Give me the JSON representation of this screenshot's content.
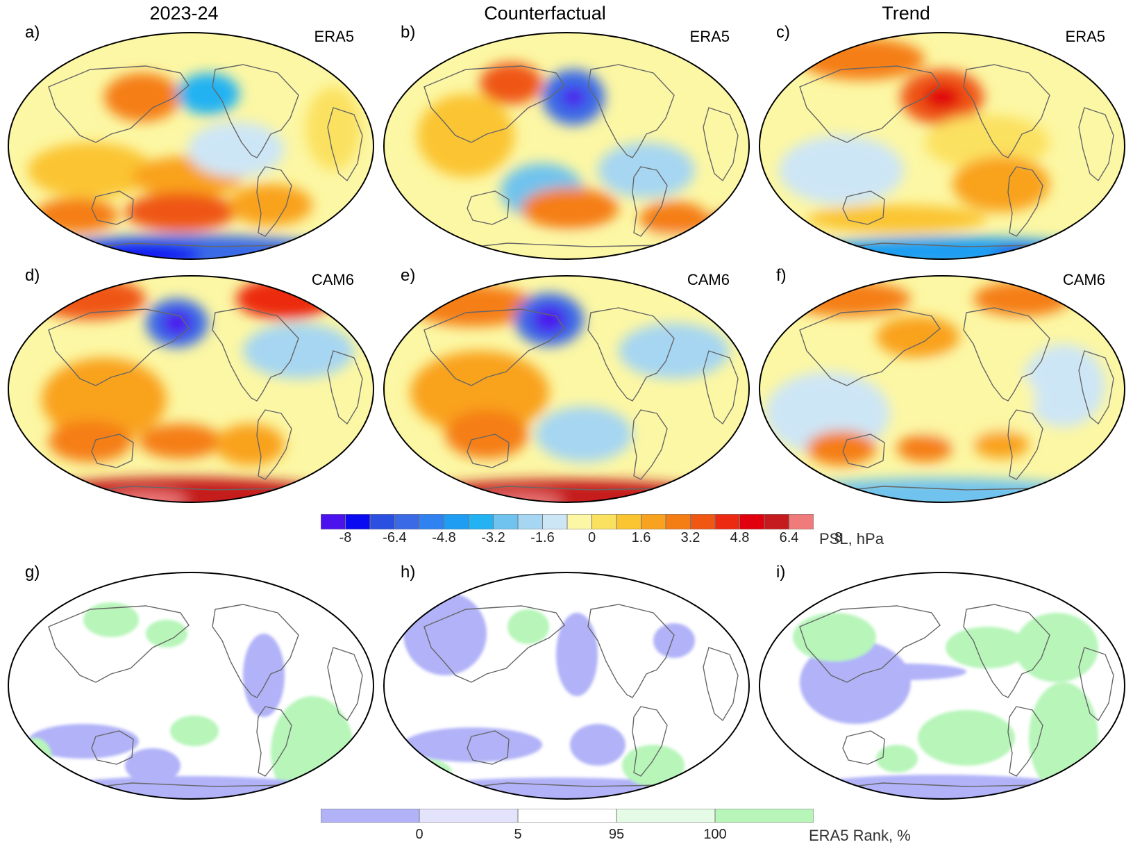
{
  "columns": [
    "2023-24",
    "Counterfactual",
    "Trend"
  ],
  "panels": [
    {
      "label": "a)",
      "source": "ERA5",
      "kind": "psl",
      "variant": 0
    },
    {
      "label": "b)",
      "source": "ERA5",
      "kind": "psl",
      "variant": 1
    },
    {
      "label": "c)",
      "source": "ERA5",
      "kind": "psl",
      "variant": 2
    },
    {
      "label": "d)",
      "source": "CAM6",
      "kind": "psl",
      "variant": 3
    },
    {
      "label": "e)",
      "source": "CAM6",
      "kind": "psl",
      "variant": 4
    },
    {
      "label": "f)",
      "source": "CAM6",
      "kind": "psl",
      "variant": 5
    },
    {
      "label": "g)",
      "source": "",
      "kind": "rank",
      "variant": 0
    },
    {
      "label": "h)",
      "source": "",
      "kind": "rank",
      "variant": 1
    },
    {
      "label": "i)",
      "source": "",
      "kind": "rank",
      "variant": 2
    }
  ],
  "psl_colorbar": {
    "colors": [
      "#4b12ee",
      "#0b0bf2",
      "#2b4fe0",
      "#3a6ae6",
      "#2f82ef",
      "#1f9df2",
      "#23b2f2",
      "#6fc3ee",
      "#a6d6f2",
      "#cde6f6",
      "#fcf7a4",
      "#fbe160",
      "#fbc431",
      "#f9a21f",
      "#f57e14",
      "#ef5712",
      "#ec2a11",
      "#e0000e",
      "#c51a1e",
      "#ef7b7b"
    ],
    "ticks": [
      "-8",
      "-6.4",
      "-4.8",
      "-3.2",
      "-1.6",
      "0",
      "1.6",
      "3.2",
      "4.8",
      "6.4",
      "8"
    ],
    "title": "PSL, hPa"
  },
  "rank_colorbar": {
    "colors": [
      "#b1b2f8",
      "#e3e3fb",
      "#ffffff",
      "#e6fbe6",
      "#b7f5b9"
    ],
    "ticks": [
      "0",
      "5",
      "95",
      "100"
    ],
    "title": "ERA5 Rank, %"
  }
}
